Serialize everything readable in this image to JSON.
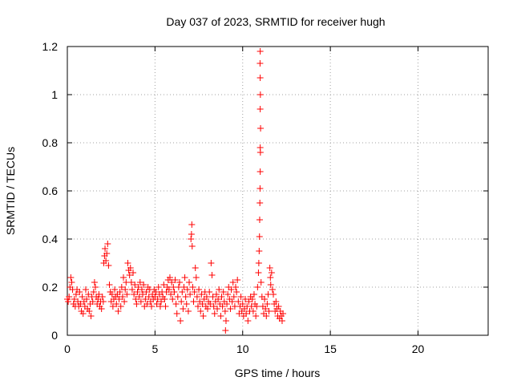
{
  "chart_data": {
    "type": "scatter",
    "title": "Day 037 of 2023, SRMTID for receiver hugh",
    "xlabel": "GPS time / hours",
    "ylabel": "SRMTID / TECUs",
    "xlim": [
      0,
      24
    ],
    "ylim": [
      0,
      1.2
    ],
    "x_ticks": [
      0,
      5,
      10,
      15,
      20
    ],
    "x_tick_labels": [
      "0",
      "5",
      "10",
      "15",
      "20"
    ],
    "y_ticks": [
      0,
      0.2,
      0.4,
      0.6,
      0.8,
      1,
      1.2
    ],
    "y_tick_labels": [
      "0",
      "0.2",
      "0.4",
      "0.6",
      "0.8",
      "1",
      "1.2"
    ],
    "grid": true,
    "marker": "+",
    "marker_color": "#ff0000",
    "series": [
      {
        "name": "SRMTID",
        "points": [
          [
            0.0,
            0.15
          ],
          [
            0.05,
            0.14
          ],
          [
            0.1,
            0.16
          ],
          [
            0.15,
            0.2
          ],
          [
            0.2,
            0.24
          ],
          [
            0.25,
            0.22
          ],
          [
            0.3,
            0.19
          ],
          [
            0.35,
            0.13
          ],
          [
            0.4,
            0.15
          ],
          [
            0.45,
            0.12
          ],
          [
            0.5,
            0.17
          ],
          [
            0.55,
            0.19
          ],
          [
            0.6,
            0.14
          ],
          [
            0.65,
            0.12
          ],
          [
            0.7,
            0.18
          ],
          [
            0.75,
            0.13
          ],
          [
            0.8,
            0.1
          ],
          [
            0.85,
            0.16
          ],
          [
            0.9,
            0.09
          ],
          [
            0.95,
            0.14
          ],
          [
            1.0,
            0.12
          ],
          [
            1.05,
            0.19
          ],
          [
            1.1,
            0.15
          ],
          [
            1.15,
            0.11
          ],
          [
            1.2,
            0.17
          ],
          [
            1.25,
            0.1
          ],
          [
            1.3,
            0.13
          ],
          [
            1.35,
            0.08
          ],
          [
            1.4,
            0.16
          ],
          [
            1.45,
            0.14
          ],
          [
            1.5,
            0.18
          ],
          [
            1.55,
            0.22
          ],
          [
            1.6,
            0.2
          ],
          [
            1.65,
            0.16
          ],
          [
            1.7,
            0.13
          ],
          [
            1.75,
            0.15
          ],
          [
            1.8,
            0.17
          ],
          [
            1.85,
            0.12
          ],
          [
            1.9,
            0.14
          ],
          [
            1.95,
            0.11
          ],
          [
            2.0,
            0.16
          ],
          [
            2.05,
            0.14
          ],
          [
            2.08,
            0.3
          ],
          [
            2.12,
            0.33
          ],
          [
            2.15,
            0.36
          ],
          [
            2.2,
            0.31
          ],
          [
            2.25,
            0.34
          ],
          [
            2.3,
            0.38
          ],
          [
            2.35,
            0.29
          ],
          [
            2.4,
            0.21
          ],
          [
            2.45,
            0.18
          ],
          [
            2.5,
            0.14
          ],
          [
            2.55,
            0.17
          ],
          [
            2.6,
            0.12
          ],
          [
            2.65,
            0.15
          ],
          [
            2.7,
            0.19
          ],
          [
            2.75,
            0.16
          ],
          [
            2.8,
            0.13
          ],
          [
            2.85,
            0.17
          ],
          [
            2.9,
            0.1
          ],
          [
            2.95,
            0.15
          ],
          [
            3.0,
            0.18
          ],
          [
            3.05,
            0.12
          ],
          [
            3.1,
            0.2
          ],
          [
            3.15,
            0.16
          ],
          [
            3.2,
            0.24
          ],
          [
            3.25,
            0.14
          ],
          [
            3.3,
            0.19
          ],
          [
            3.35,
            0.22
          ],
          [
            3.4,
            0.17
          ],
          [
            3.45,
            0.3
          ],
          [
            3.5,
            0.27
          ],
          [
            3.55,
            0.25
          ],
          [
            3.6,
            0.28
          ],
          [
            3.65,
            0.22
          ],
          [
            3.7,
            0.19
          ],
          [
            3.75,
            0.26
          ],
          [
            3.8,
            0.17
          ],
          [
            3.85,
            0.21
          ],
          [
            3.9,
            0.15
          ],
          [
            3.95,
            0.13
          ],
          [
            4.0,
            0.18
          ],
          [
            4.05,
            0.2
          ],
          [
            4.1,
            0.16
          ],
          [
            4.15,
            0.22
          ],
          [
            4.2,
            0.14
          ],
          [
            4.25,
            0.19
          ],
          [
            4.3,
            0.17
          ],
          [
            4.35,
            0.21
          ],
          [
            4.4,
            0.12
          ],
          [
            4.45,
            0.15
          ],
          [
            4.5,
            0.18
          ],
          [
            4.55,
            0.13
          ],
          [
            4.6,
            0.2
          ],
          [
            4.65,
            0.16
          ],
          [
            4.7,
            0.19
          ],
          [
            4.75,
            0.14
          ],
          [
            4.8,
            0.12
          ],
          [
            4.85,
            0.17
          ],
          [
            4.9,
            0.15
          ],
          [
            4.95,
            0.19
          ],
          [
            5.0,
            0.16
          ],
          [
            5.05,
            0.18
          ],
          [
            5.1,
            0.13
          ],
          [
            5.15,
            0.15
          ],
          [
            5.2,
            0.2
          ],
          [
            5.25,
            0.17
          ],
          [
            5.3,
            0.12
          ],
          [
            5.35,
            0.14
          ],
          [
            5.4,
            0.18
          ],
          [
            5.45,
            0.16
          ],
          [
            5.5,
            0.21
          ],
          [
            5.55,
            0.15
          ],
          [
            5.6,
            0.12
          ],
          [
            5.65,
            0.18
          ],
          [
            5.7,
            0.2
          ],
          [
            5.75,
            0.23
          ],
          [
            5.8,
            0.19
          ],
          [
            5.85,
            0.24
          ],
          [
            5.9,
            0.17
          ],
          [
            5.95,
            0.22
          ],
          [
            6.0,
            0.15
          ],
          [
            6.05,
            0.2
          ],
          [
            6.1,
            0.18
          ],
          [
            6.15,
            0.23
          ],
          [
            6.2,
            0.13
          ],
          [
            6.25,
            0.09
          ],
          [
            6.3,
            0.16
          ],
          [
            6.35,
            0.2
          ],
          [
            6.4,
            0.22
          ],
          [
            6.45,
            0.06
          ],
          [
            6.5,
            0.14
          ],
          [
            6.55,
            0.18
          ],
          [
            6.6,
            0.11
          ],
          [
            6.65,
            0.2
          ],
          [
            6.7,
            0.24
          ],
          [
            6.75,
            0.16
          ],
          [
            6.8,
            0.13
          ],
          [
            6.85,
            0.19
          ],
          [
            6.9,
            0.1
          ],
          [
            6.95,
            0.22
          ],
          [
            7.0,
            0.17
          ],
          [
            7.05,
            0.4
          ],
          [
            7.08,
            0.42
          ],
          [
            7.1,
            0.46
          ],
          [
            7.12,
            0.37
          ],
          [
            7.15,
            0.2
          ],
          [
            7.2,
            0.14
          ],
          [
            7.25,
            0.18
          ],
          [
            7.3,
            0.28
          ],
          [
            7.35,
            0.24
          ],
          [
            7.4,
            0.16
          ],
          [
            7.45,
            0.12
          ],
          [
            7.5,
            0.19
          ],
          [
            7.55,
            0.14
          ],
          [
            7.6,
            0.1
          ],
          [
            7.65,
            0.17
          ],
          [
            7.7,
            0.13
          ],
          [
            7.75,
            0.08
          ],
          [
            7.8,
            0.15
          ],
          [
            7.85,
            0.18
          ],
          [
            7.9,
            0.12
          ],
          [
            7.95,
            0.16
          ],
          [
            8.0,
            0.11
          ],
          [
            8.05,
            0.14
          ],
          [
            8.1,
            0.18
          ],
          [
            8.15,
            0.13
          ],
          [
            8.2,
            0.3
          ],
          [
            8.25,
            0.25
          ],
          [
            8.3,
            0.16
          ],
          [
            8.35,
            0.12
          ],
          [
            8.4,
            0.09
          ],
          [
            8.45,
            0.14
          ],
          [
            8.5,
            0.17
          ],
          [
            8.55,
            0.11
          ],
          [
            8.6,
            0.15
          ],
          [
            8.65,
            0.19
          ],
          [
            8.7,
            0.13
          ],
          [
            8.75,
            0.08
          ],
          [
            8.8,
            0.16
          ],
          [
            8.85,
            0.12
          ],
          [
            8.9,
            0.18
          ],
          [
            8.95,
            0.14
          ],
          [
            9.0,
            0.1
          ],
          [
            9.02,
            0.02
          ],
          [
            9.05,
            0.06
          ],
          [
            9.1,
            0.13
          ],
          [
            9.15,
            0.17
          ],
          [
            9.2,
            0.2
          ],
          [
            9.25,
            0.15
          ],
          [
            9.3,
            0.11
          ],
          [
            9.35,
            0.19
          ],
          [
            9.4,
            0.14
          ],
          [
            9.45,
            0.22
          ],
          [
            9.5,
            0.16
          ],
          [
            9.55,
            0.12
          ],
          [
            9.6,
            0.2
          ],
          [
            9.65,
            0.18
          ],
          [
            9.7,
            0.23
          ],
          [
            9.75,
            0.14
          ],
          [
            9.8,
            0.09
          ],
          [
            9.85,
            0.12
          ],
          [
            9.9,
            0.16
          ],
          [
            9.95,
            0.1
          ],
          [
            10.0,
            0.13
          ],
          [
            10.05,
            0.08
          ],
          [
            10.1,
            0.11
          ],
          [
            10.15,
            0.15
          ],
          [
            10.2,
            0.09
          ],
          [
            10.25,
            0.12
          ],
          [
            10.3,
            0.06
          ],
          [
            10.35,
            0.14
          ],
          [
            10.4,
            0.1
          ],
          [
            10.45,
            0.16
          ],
          [
            10.5,
            0.12
          ],
          [
            10.55,
            0.15
          ],
          [
            10.6,
            0.1
          ],
          [
            10.65,
            0.17
          ],
          [
            10.7,
            0.13
          ],
          [
            10.75,
            0.08
          ],
          [
            10.8,
            0.12
          ],
          [
            10.85,
            0.2
          ],
          [
            10.9,
            0.26
          ],
          [
            10.92,
            0.3
          ],
          [
            10.94,
            0.35
          ],
          [
            10.96,
            0.41
          ],
          [
            10.97,
            0.48
          ],
          [
            10.98,
            0.55
          ],
          [
            10.99,
            0.61
          ],
          [
            11.0,
            0.68
          ],
          [
            11.01,
            0.76
          ],
          [
            11.0,
            0.78
          ],
          [
            11.02,
            0.86
          ],
          [
            11.0,
            0.94
          ],
          [
            11.01,
            1.0
          ],
          [
            11.0,
            1.07
          ],
          [
            10.99,
            1.13
          ],
          [
            11.0,
            1.18
          ],
          [
            11.05,
            0.22
          ],
          [
            11.1,
            0.16
          ],
          [
            11.15,
            0.12
          ],
          [
            11.2,
            0.09
          ],
          [
            11.25,
            0.15
          ],
          [
            11.3,
            0.11
          ],
          [
            11.35,
            0.08
          ],
          [
            11.4,
            0.13
          ],
          [
            11.45,
            0.17
          ],
          [
            11.5,
            0.1
          ],
          [
            11.55,
            0.28
          ],
          [
            11.58,
            0.24
          ],
          [
            11.6,
            0.21
          ],
          [
            11.65,
            0.26
          ],
          [
            11.7,
            0.19
          ],
          [
            11.75,
            0.17
          ],
          [
            11.8,
            0.13
          ],
          [
            11.85,
            0.1
          ],
          [
            11.9,
            0.14
          ],
          [
            11.95,
            0.11
          ],
          [
            12.0,
            0.08
          ],
          [
            12.05,
            0.12
          ],
          [
            12.1,
            0.07
          ],
          [
            12.15,
            0.1
          ],
          [
            12.2,
            0.08
          ],
          [
            12.25,
            0.06
          ],
          [
            12.3,
            0.09
          ]
        ]
      }
    ]
  }
}
